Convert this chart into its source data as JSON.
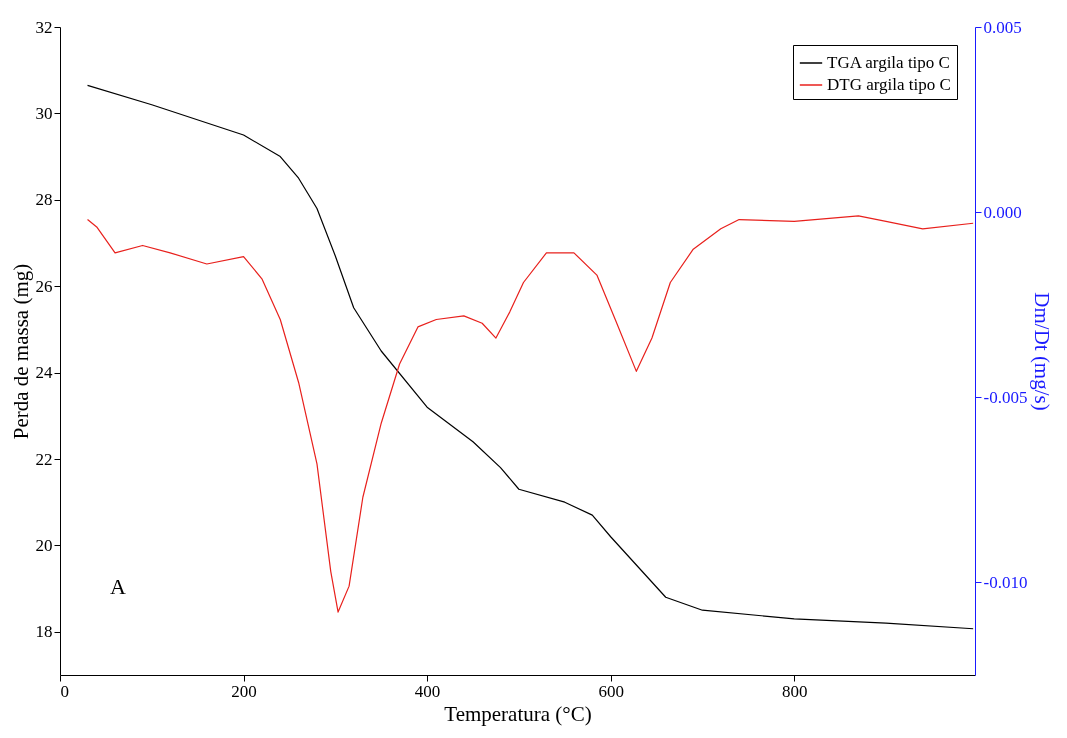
{
  "chart_data": {
    "type": "line",
    "xlabel": "Temperatura (°C)",
    "ylabel": "Perda de massa (mg)",
    "y2label": "Dm/Dt (mg/s)",
    "xlim": [
      0,
      997
    ],
    "xticks": [
      0,
      200,
      400,
      600,
      800
    ],
    "ylim": [
      17,
      32
    ],
    "yticks": [
      18,
      20,
      22,
      24,
      26,
      28,
      30,
      32
    ],
    "y2lim": [
      -0.0125,
      0.005
    ],
    "y2ticks": [
      {
        "value": -0.01,
        "label": "-0.010"
      },
      {
        "value": -0.005,
        "label": "-0.005"
      },
      {
        "value": 0,
        "label": "0.000"
      },
      {
        "value": 0.005,
        "label": "0.005"
      }
    ],
    "grid": false,
    "legend": "top right",
    "marker": "none",
    "line_style": "solid",
    "annotations": [
      "A"
    ],
    "series": [
      {
        "name": "TGA argila tipo C",
        "color": "#000000",
        "x": [
          30,
          100,
          200,
          240,
          260,
          280,
          300,
          320,
          350,
          400,
          450,
          480,
          500,
          550,
          580,
          600,
          630,
          660,
          700,
          800,
          900,
          995
        ],
        "values": [
          30.65,
          30.2,
          29.5,
          29.0,
          28.5,
          27.8,
          26.7,
          25.5,
          24.5,
          23.2,
          22.4,
          21.8,
          21.3,
          21.0,
          20.7,
          20.2,
          19.5,
          18.8,
          18.5,
          18.3,
          18.2,
          18.07
        ]
      },
      {
        "name": "DTG argila tipo C",
        "color": "#e8201c",
        "axis": "y2",
        "x": [
          30,
          40,
          60,
          90,
          120,
          160,
          200,
          220,
          240,
          260,
          280,
          295,
          303,
          315,
          330,
          350,
          370,
          390,
          410,
          440,
          460,
          475,
          490,
          505,
          530,
          560,
          585,
          605,
          628,
          645,
          665,
          690,
          720,
          740,
          800,
          870,
          900,
          940,
          995
        ],
        "values": [
          -0.0002,
          -0.0004,
          -0.0011,
          -0.0009,
          -0.0011,
          -0.0014,
          -0.0012,
          -0.0018,
          -0.0029,
          -0.0046,
          -0.0068,
          -0.0097,
          -0.0108,
          -0.0101,
          -0.0077,
          -0.0057,
          -0.0041,
          -0.0031,
          -0.0029,
          -0.0028,
          -0.003,
          -0.0034,
          -0.0027,
          -0.0019,
          -0.0011,
          -0.0011,
          -0.0017,
          -0.0029,
          -0.0043,
          -0.0034,
          -0.0019,
          -0.001,
          -0.00045,
          -0.0002,
          -0.00025,
          -0.0001,
          -0.00025,
          -0.00045,
          -0.0003
        ]
      }
    ]
  }
}
